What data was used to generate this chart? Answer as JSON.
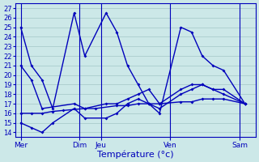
{
  "background_color": "#cce8e8",
  "grid_color": "#aacccc",
  "line_color": "#0000bb",
  "xlabel": "Température (°c)",
  "ylim": [
    13.5,
    27.5
  ],
  "ytick_min": 14,
  "ytick_max": 27,
  "figsize": [
    3.2,
    2.0
  ],
  "dpi": 100,
  "day_labels": [
    "Mer",
    "Dim",
    "Jeu",
    "Ven",
    "Sam"
  ],
  "series": [
    {
      "x": [
        0,
        1,
        2,
        3,
        5,
        6,
        8,
        9,
        10,
        11,
        12,
        13,
        15,
        16,
        17,
        18,
        19,
        21
      ],
      "y": [
        25,
        21,
        19.5,
        16.5,
        26.5,
        22,
        26.5,
        24.5,
        21,
        19,
        17,
        16,
        25,
        24.5,
        22,
        21,
        20.5,
        17
      ]
    },
    {
      "x": [
        0,
        1,
        2,
        5,
        6,
        8,
        9,
        10,
        11,
        12,
        13,
        15,
        16,
        17,
        18,
        19,
        21
      ],
      "y": [
        21,
        19.5,
        16.5,
        17,
        16.5,
        17,
        17,
        17.5,
        18,
        18.5,
        17,
        18.5,
        19,
        19,
        18.5,
        18.5,
        17
      ]
    },
    {
      "x": [
        0,
        1,
        2,
        3,
        4,
        6,
        7,
        9,
        10,
        11,
        12,
        13,
        15,
        16,
        17,
        18,
        19,
        21
      ],
      "y": [
        16,
        16,
        16,
        16.2,
        16.3,
        16.5,
        16.5,
        16.8,
        16.8,
        17,
        17,
        17,
        17.2,
        17.2,
        17.5,
        17.5,
        17.5,
        17
      ]
    },
    {
      "x": [
        0,
        1,
        2,
        3,
        5,
        6,
        8,
        9,
        10,
        11,
        12,
        13,
        15,
        16,
        17,
        18,
        19,
        21
      ],
      "y": [
        15,
        14.5,
        14,
        15,
        16.5,
        15.5,
        15.5,
        16,
        17,
        17.5,
        17,
        16.5,
        18,
        18.5,
        19,
        18.5,
        18,
        17
      ]
    }
  ],
  "vlines_x": [
    0,
    5.5,
    7.5,
    14,
    20.5
  ],
  "xlim": [
    -0.5,
    22
  ]
}
